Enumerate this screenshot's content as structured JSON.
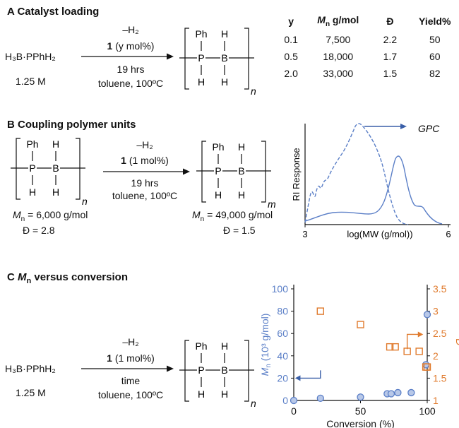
{
  "panelA": {
    "title": "A Catalyst loading",
    "reactant": "H₃B·PPhH₂",
    "conc": "1.25 M",
    "arrow_top": "–H₂",
    "catalyst_num": "1",
    "catalyst_amt": "(y mol%)",
    "time": "19 hrs",
    "conditions": "toluene, 100ºC",
    "table": {
      "headers": [
        "y",
        "Mn g/mol",
        "Đ",
        "Yield%"
      ],
      "rows": [
        [
          "0.1",
          "7,500",
          "2.2",
          "50"
        ],
        [
          "0.5",
          "18,000",
          "1.7",
          "60"
        ],
        [
          "2.0",
          "33,000",
          "1.5",
          "82"
        ]
      ]
    }
  },
  "panelB": {
    "title": "B Coupling polymer units",
    "arrow_top": "–H₂",
    "catalyst_num": "1",
    "catalyst_amt": "(1 mol%)",
    "time": "19 hrs",
    "conditions": "toluene, 100ºC",
    "left_mn": "= 6,000 g/mol",
    "left_d": "Đ = 2.8",
    "right_mn": "= 49,000 g/mol",
    "right_d": "Đ = 1.5",
    "left_sub": "n",
    "right_sub": "m",
    "gpc": {
      "ylabel": "RI Response",
      "xlabel": "log(MW (g/mol))",
      "x_min_label": "3",
      "x_max_label": "6",
      "tag": "GPC"
    }
  },
  "panelC": {
    "title_prefix": "C",
    "title_mn": "M",
    "title_sub": "n",
    "title_rest": " versus conversion",
    "reactant": "H₃B·PPhH₂",
    "conc": "1.25 M",
    "arrow_top": "–H₂",
    "catalyst_num": "1",
    "catalyst_amt": "(1 mol%)",
    "time": "time",
    "conditions": "toluene, 100ºC"
  },
  "polymer_unit": {
    "ph": "Ph",
    "p": "P",
    "b": "B",
    "h": "H",
    "sub_n": "n"
  },
  "colors": {
    "blue": "#5b7fc7",
    "orange": "#e07b2e"
  },
  "chart_data": {
    "type": "scatter",
    "xlabel": "Conversion (%)",
    "ylabel_left": "Mn (10³ g/mol)",
    "ylabel_right": "Đ",
    "xlim": [
      0,
      100
    ],
    "ylim_left": [
      0,
      100
    ],
    "ylim_right": [
      1,
      3.5
    ],
    "x_ticks": [
      "0",
      "50",
      "100"
    ],
    "yleft_ticks": [
      "0",
      "20",
      "40",
      "60",
      "80",
      "100"
    ],
    "yright_ticks": [
      "1",
      "1.5",
      "2",
      "2.5",
      "3",
      "3.5"
    ],
    "series": [
      {
        "axis": "left",
        "marker": "circle",
        "color": "#5b7fc7",
        "x": [
          0,
          20,
          50,
          70,
          73,
          78,
          88,
          99,
          100
        ],
        "y": [
          0,
          2,
          3,
          6,
          6,
          7,
          7,
          32,
          77
        ]
      },
      {
        "axis": "right",
        "marker": "square",
        "color": "#e07b2e",
        "x": [
          20,
          50,
          72,
          76,
          85,
          94,
          99,
          100
        ],
        "y": [
          3.0,
          2.7,
          2.2,
          2.2,
          2.1,
          2.1,
          1.75,
          1.75
        ]
      }
    ]
  }
}
